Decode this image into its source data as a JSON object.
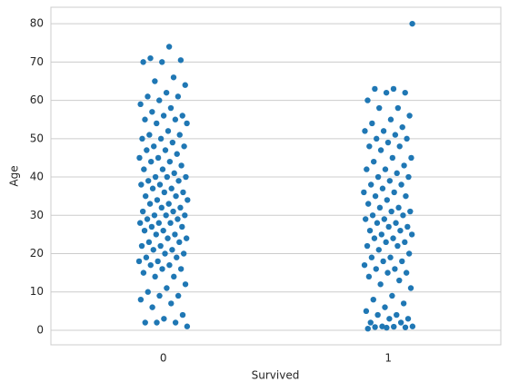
{
  "chart_data": {
    "type": "strip",
    "x_label": "Survived",
    "y_label": "Age",
    "categories": [
      "0",
      "1"
    ],
    "series": [
      {
        "color": "#1f77b4",
        "values": [
          74,
          71,
          70.5,
          70,
          70,
          66,
          65,
          64,
          62,
          61,
          61,
          60,
          59,
          58,
          57,
          56,
          56,
          55,
          55,
          54,
          54,
          52,
          51,
          51,
          50,
          50,
          49,
          48,
          48,
          47,
          47,
          46,
          45,
          45,
          44,
          44,
          43,
          42,
          42,
          41,
          40,
          40,
          40,
          39,
          39,
          38,
          38,
          37,
          37,
          36,
          36,
          35,
          35,
          34,
          34,
          33,
          33,
          32,
          32,
          31,
          31,
          30,
          30,
          30,
          29,
          29,
          28,
          28,
          28,
          27,
          27,
          26,
          26,
          25,
          25,
          24,
          24,
          23,
          23,
          22,
          22,
          21,
          21,
          20,
          20,
          19,
          19,
          18,
          18,
          17,
          17,
          16,
          16,
          15,
          14,
          14,
          12,
          11,
          10,
          9,
          9,
          8,
          7,
          6,
          4,
          3,
          2,
          2,
          2,
          1
        ]
      },
      {
        "color": "#1f77b4",
        "values": [
          80,
          63,
          63,
          62,
          62,
          60,
          58,
          58,
          56,
          55,
          54,
          53,
          52,
          52,
          51,
          50,
          50,
          49,
          48,
          48,
          47,
          45,
          45,
          44,
          43,
          42,
          42,
          41,
          40,
          40,
          39,
          38,
          38,
          37,
          36,
          36,
          35,
          35,
          34,
          33,
          32,
          32,
          31,
          31,
          30,
          30,
          29,
          29,
          28,
          28,
          27,
          27,
          26,
          26,
          25,
          25,
          24,
          24,
          23,
          23,
          22,
          22,
          21,
          20,
          19,
          19,
          18,
          18,
          17,
          16,
          16,
          15,
          15,
          14,
          13,
          12,
          11,
          9,
          8,
          7,
          6,
          5,
          4,
          4,
          3,
          3,
          2,
          2,
          1,
          1,
          0.92,
          0.83,
          0.75,
          0.67,
          0.42
        ]
      }
    ],
    "ylim": [
      -3.8,
      84.3
    ],
    "yticks": [
      0,
      10,
      20,
      30,
      40,
      50,
      60,
      70,
      80
    ],
    "grid": true
  }
}
